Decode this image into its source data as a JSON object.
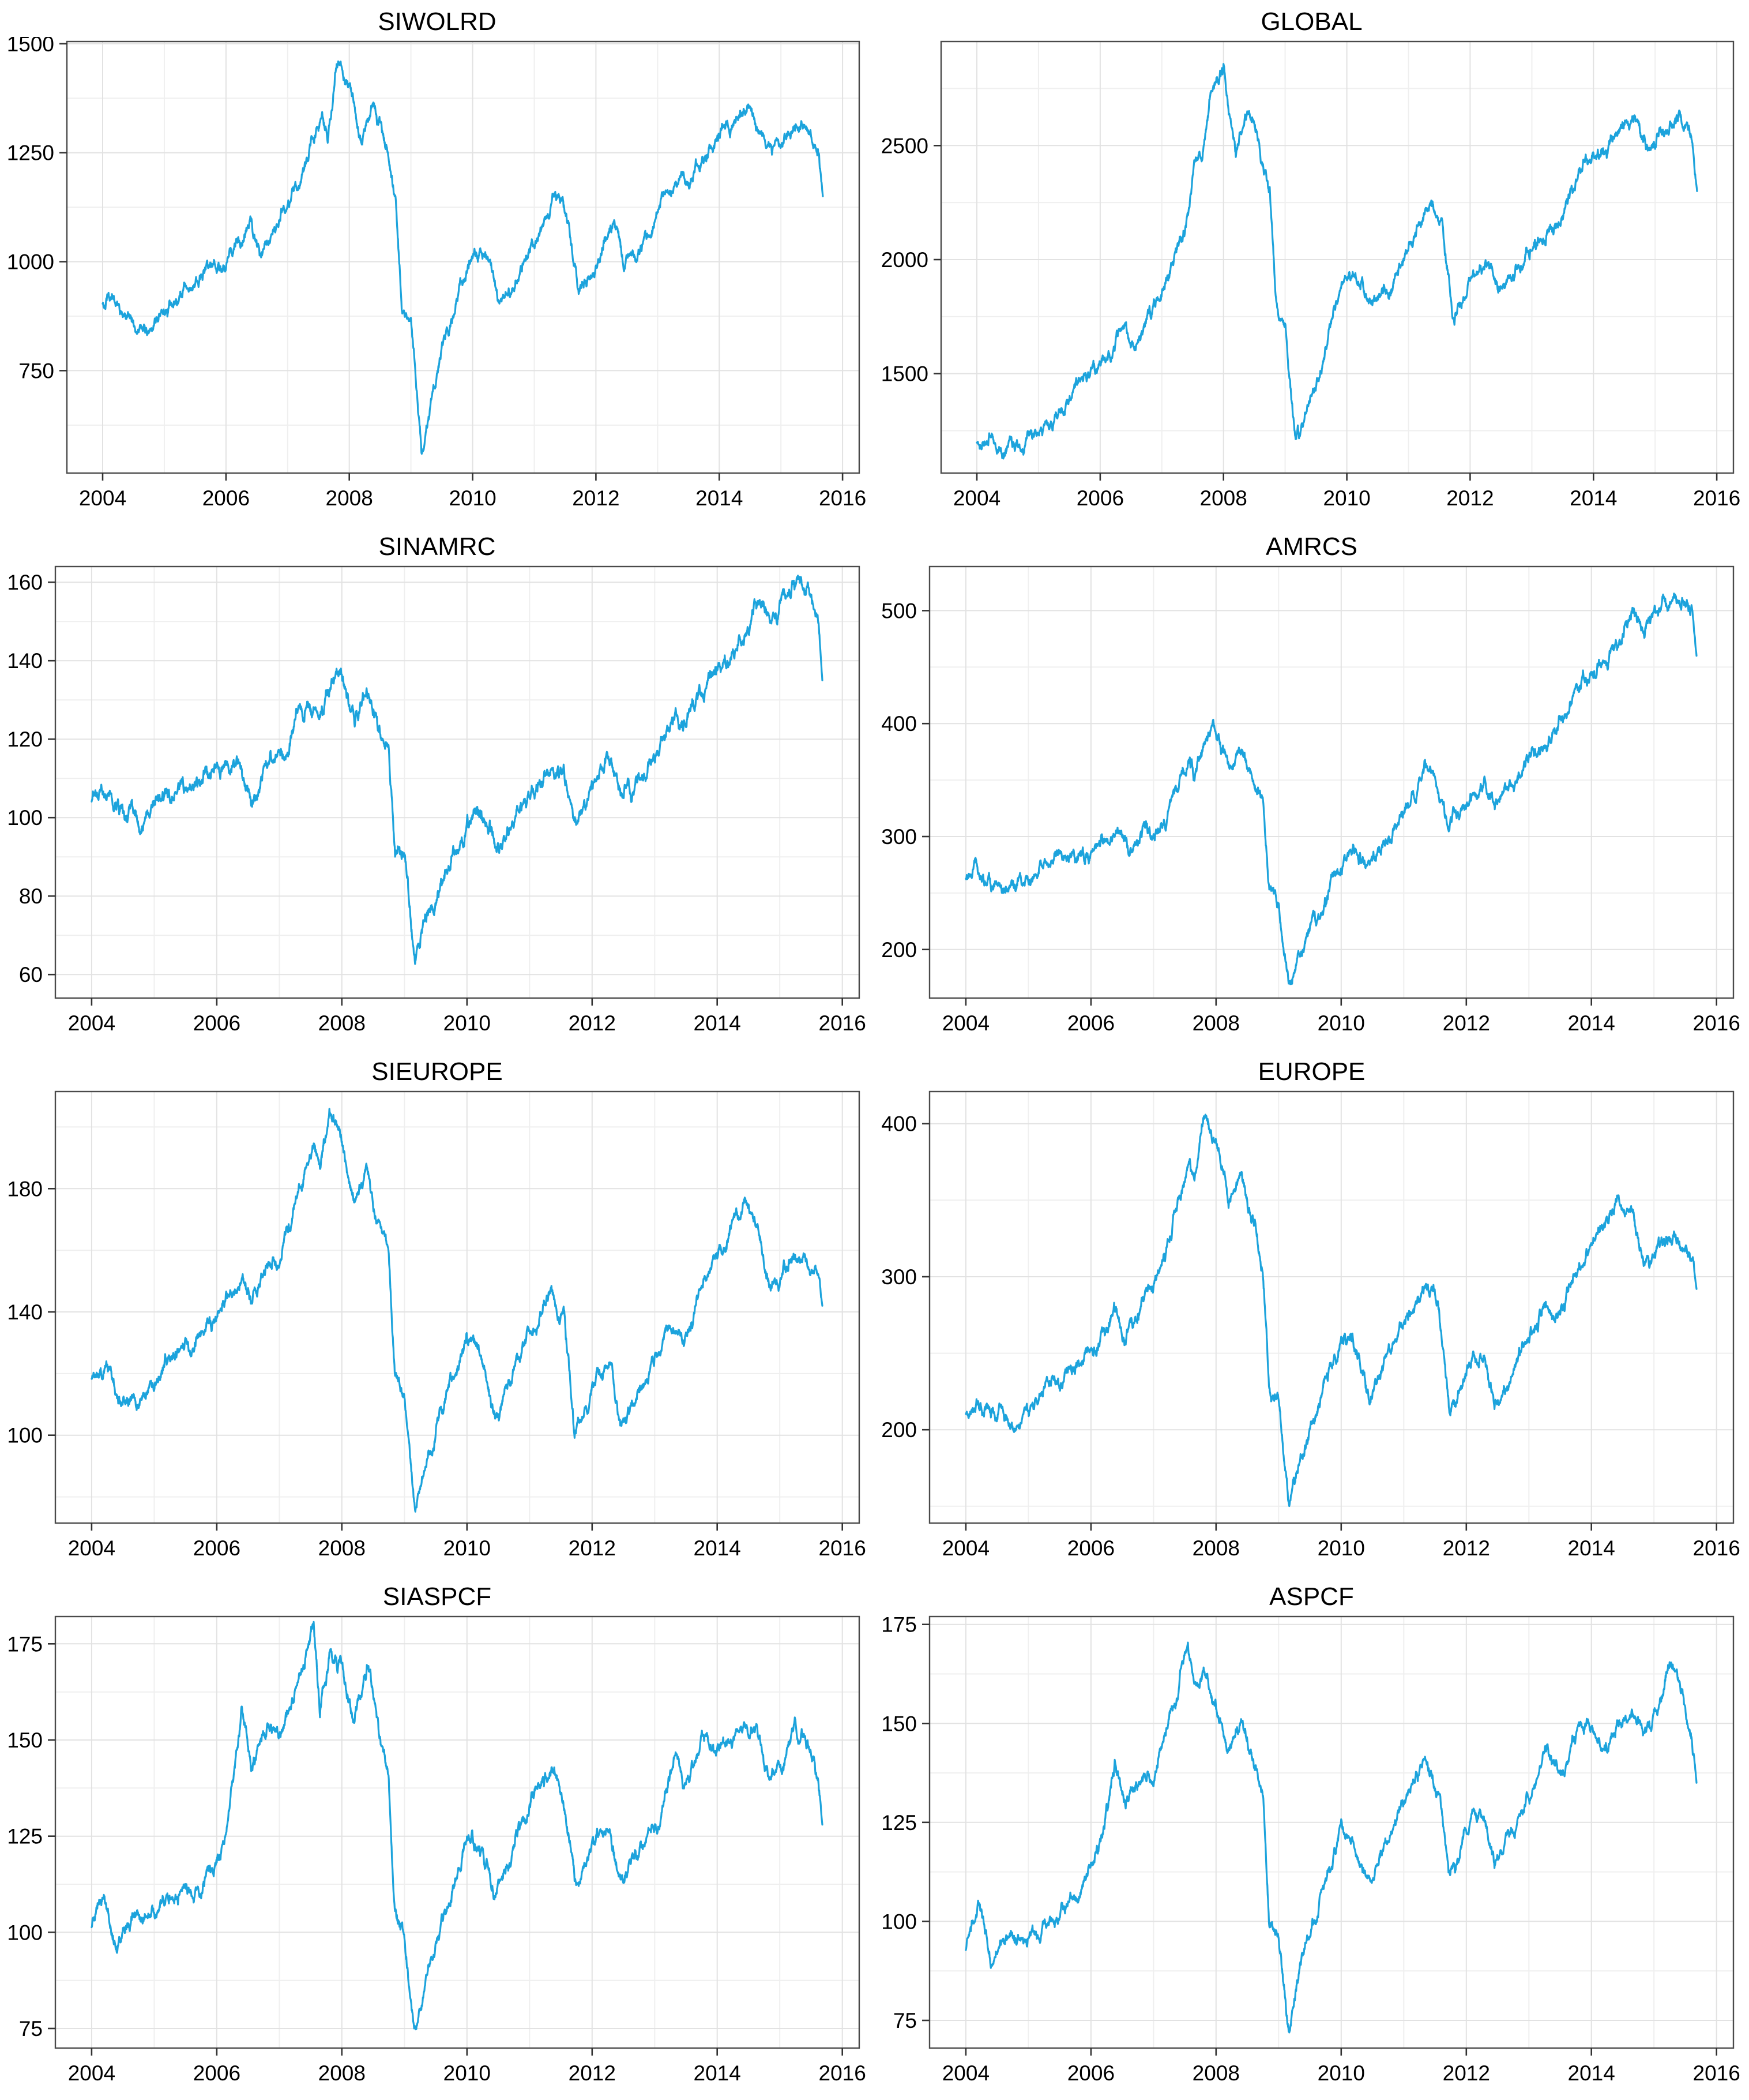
{
  "page": {
    "background": "#ffffff",
    "description_labels": []
  },
  "chart_data": {
    "type": "line",
    "layout": {
      "rows": 4,
      "cols": 2,
      "grid": true,
      "legend": false,
      "panel_background": "#ffffff"
    },
    "line_color": "#1CA3DC",
    "grid_major_color": "#e2e2e2",
    "grid_minor_color": "#efefef",
    "panel_border_color": "#4a4a4a",
    "tick_color": "#333333",
    "tick_label_color": "#000000",
    "xlabel": "",
    "ylabel": "",
    "x_domain": [
      2003.42,
      2016.27
    ],
    "x_ticks_labeled": [
      2004,
      2006,
      2008,
      2010,
      2012,
      2014,
      2016
    ],
    "x_minor": [
      2005,
      2007,
      2009,
      2011,
      2013,
      2015
    ],
    "x": [
      2004.0,
      2004.2,
      2004.4,
      2004.55,
      2004.75,
      2005.0,
      2005.25,
      2005.5,
      2005.75,
      2006.0,
      2006.2,
      2006.4,
      2006.55,
      2006.75,
      2007.0,
      2007.2,
      2007.4,
      2007.55,
      2007.65,
      2007.8,
      2008.0,
      2008.2,
      2008.4,
      2008.6,
      2008.75,
      2008.85,
      2009.0,
      2009.17,
      2009.35,
      2009.6,
      2009.8,
      2010.0,
      2010.2,
      2010.45,
      2010.65,
      2010.85,
      2011.1,
      2011.35,
      2011.55,
      2011.72,
      2011.9,
      2012.1,
      2012.3,
      2012.45,
      2012.65,
      2012.85,
      2013.1,
      2013.3,
      2013.5,
      2013.75,
      2014.0,
      2014.2,
      2014.45,
      2014.65,
      2014.85,
      2015.05,
      2015.25,
      2015.45,
      2015.6,
      2015.68
    ],
    "charts": [
      {
        "title": "SIWOLRD",
        "y_domain": [
          515,
          1505
        ],
        "y_major": [
          750,
          1000,
          1250,
          1500
        ],
        "y_minor": [
          625,
          875,
          1125,
          1375
        ],
        "noise": 7,
        "values": [
          905,
          915,
          875,
          855,
          845,
          890,
          920,
          950,
          985,
          1020,
          1060,
          1085,
          1010,
          1060,
          1130,
          1195,
          1270,
          1340,
          1300,
          1460,
          1395,
          1280,
          1345,
          1255,
          1150,
          900,
          880,
          570,
          700,
          840,
          950,
          1015,
          1020,
          905,
          945,
          1010,
          1070,
          1160,
          1100,
          930,
          960,
          1030,
          1065,
          990,
          1010,
          1050,
          1120,
          1165,
          1180,
          1240,
          1285,
          1310,
          1350,
          1310,
          1260,
          1300,
          1340,
          1310,
          1270,
          1150
        ]
      },
      {
        "title": "GLOBAL",
        "y_domain": [
          1064,
          2956
        ],
        "y_major": [
          1500,
          2000,
          2500
        ],
        "y_minor": [
          1250,
          1750,
          2250,
          2750
        ],
        "noise": 14,
        "values": [
          1200,
          1225,
          1165,
          1190,
          1175,
          1250,
          1310,
          1370,
          1455,
          1560,
          1650,
          1720,
          1610,
          1720,
          1820,
          1960,
          2150,
          2420,
          2380,
          2700,
          2830,
          2440,
          2650,
          2450,
          2300,
          1800,
          1700,
          1150,
          1350,
          1600,
          1800,
          1925,
          1940,
          1775,
          1850,
          1985,
          2090,
          2260,
          2150,
          1800,
          1870,
          1975,
          2020,
          1870,
          1910,
          1980,
          2080,
          2170,
          2200,
          2320,
          2420,
          2470,
          2560,
          2620,
          2500,
          2550,
          2620,
          2580,
          2520,
          2300
        ]
      },
      {
        "title": "SINAMRC",
        "y_domain": [
          54,
          164
        ],
        "y_major": [
          60,
          80,
          100,
          120,
          140,
          160
        ],
        "y_minor": [
          70,
          90,
          110,
          130,
          150
        ],
        "noise": 1.0,
        "values": [
          104,
          106,
          100,
          98,
          100,
          104,
          106,
          108,
          110,
          111,
          113,
          115,
          109,
          112,
          115,
          120,
          126,
          130,
          127,
          133,
          138,
          128,
          132,
          124,
          117,
          90,
          88,
          59,
          70,
          80,
          90,
          96,
          100,
          92,
          95,
          101,
          108,
          117,
          112,
          99,
          103,
          110,
          113,
          105,
          108,
          111,
          118,
          124,
          127,
          133,
          137,
          140,
          147,
          152,
          149,
          155,
          157,
          158,
          150,
          135
        ]
      },
      {
        "title": "AMRCS",
        "y_domain": [
          157,
          539
        ],
        "y_major": [
          200,
          300,
          400,
          500
        ],
        "y_minor": [
          250,
          350,
          450
        ],
        "noise": 3,
        "values": [
          262,
          268,
          256,
          252,
          255,
          262,
          268,
          272,
          280,
          285,
          292,
          296,
          280,
          292,
          300,
          315,
          340,
          355,
          345,
          375,
          398,
          365,
          385,
          355,
          330,
          250,
          245,
          175,
          205,
          235,
          260,
          280,
          295,
          272,
          285,
          305,
          330,
          362,
          345,
          300,
          315,
          335,
          345,
          320,
          330,
          340,
          362,
          385,
          400,
          425,
          445,
          460,
          482,
          498,
          490,
          505,
          515,
          520,
          505,
          460
        ]
      },
      {
        "title": "SIEUROPE",
        "y_domain": [
          71.5,
          211.5
        ],
        "y_major": [
          100,
          140,
          180
        ],
        "y_minor": [
          80,
          120,
          160,
          200
        ],
        "noise": 1.1,
        "values": [
          118,
          121,
          113,
          111,
          110,
          117,
          123,
          128,
          133,
          138,
          146,
          152,
          143,
          152,
          160,
          170,
          185,
          193,
          186,
          205,
          197,
          180,
          188,
          172,
          160,
          122,
          118,
          78,
          95,
          110,
          122,
          130,
          128,
          108,
          116,
          126,
          134,
          147,
          138,
          103,
          110,
          120,
          122,
          100,
          108,
          116,
          130,
          136,
          133,
          148,
          158,
          165,
          173,
          166,
          148,
          152,
          161,
          157,
          148,
          142
        ]
      },
      {
        "title": "EUROPE",
        "y_domain": [
          139,
          421
        ],
        "y_major": [
          200,
          300,
          400
        ],
        "y_minor": [
          150,
          250,
          350
        ],
        "noise": 2.2,
        "values": [
          210,
          218,
          203,
          201,
          200,
          212,
          222,
          232,
          243,
          252,
          268,
          280,
          262,
          280,
          298,
          318,
          352,
          375,
          362,
          408,
          392,
          352,
          370,
          338,
          310,
          235,
          225,
          152,
          185,
          218,
          242,
          262,
          256,
          222,
          238,
          258,
          275,
          298,
          280,
          215,
          228,
          248,
          252,
          212,
          225,
          240,
          262,
          272,
          268,
          298,
          318,
          332,
          350,
          338,
          305,
          315,
          330,
          322,
          305,
          292
        ]
      },
      {
        "title": "SIASPCF",
        "y_domain": [
          69.9,
          182.1
        ],
        "y_major": [
          75,
          100,
          125,
          150,
          175
        ],
        "y_minor": [
          87.5,
          112.5,
          137.5,
          162.5
        ],
        "noise": 0.9,
        "values": [
          101,
          110,
          96,
          103,
          101,
          103,
          107,
          105,
          110,
          117,
          130,
          157,
          143,
          150,
          152,
          160,
          170,
          177,
          158,
          172,
          170,
          157,
          170,
          152,
          140,
          105,
          100,
          75,
          90,
          103,
          115,
          126,
          124,
          110,
          118,
          126,
          138,
          143,
          134,
          112,
          118,
          126,
          128,
          112,
          118,
          122,
          132,
          147,
          136,
          150,
          145,
          148,
          153,
          150,
          140,
          144,
          155,
          148,
          140,
          128
        ]
      },
      {
        "title": "ASPCF",
        "y_domain": [
          68,
          177
        ],
        "y_major": [
          75,
          100,
          125,
          150,
          175
        ],
        "y_minor": [
          87.5,
          112.5,
          137.5,
          162.5
        ],
        "noise": 0.8,
        "values": [
          93,
          105,
          88,
          96,
          97,
          94,
          97,
          103,
          110,
          113,
          124,
          140,
          128,
          133,
          139,
          148,
          157,
          171,
          160,
          168,
          155,
          146,
          157,
          143,
          133,
          98,
          96,
          73,
          88,
          100,
          110,
          119,
          116,
          107,
          114,
          122,
          136,
          141,
          133,
          112,
          117,
          127,
          128,
          114,
          120,
          123,
          133,
          143,
          136,
          142,
          146,
          142,
          150,
          156,
          147,
          152,
          165,
          158,
          148,
          135
        ]
      }
    ]
  }
}
